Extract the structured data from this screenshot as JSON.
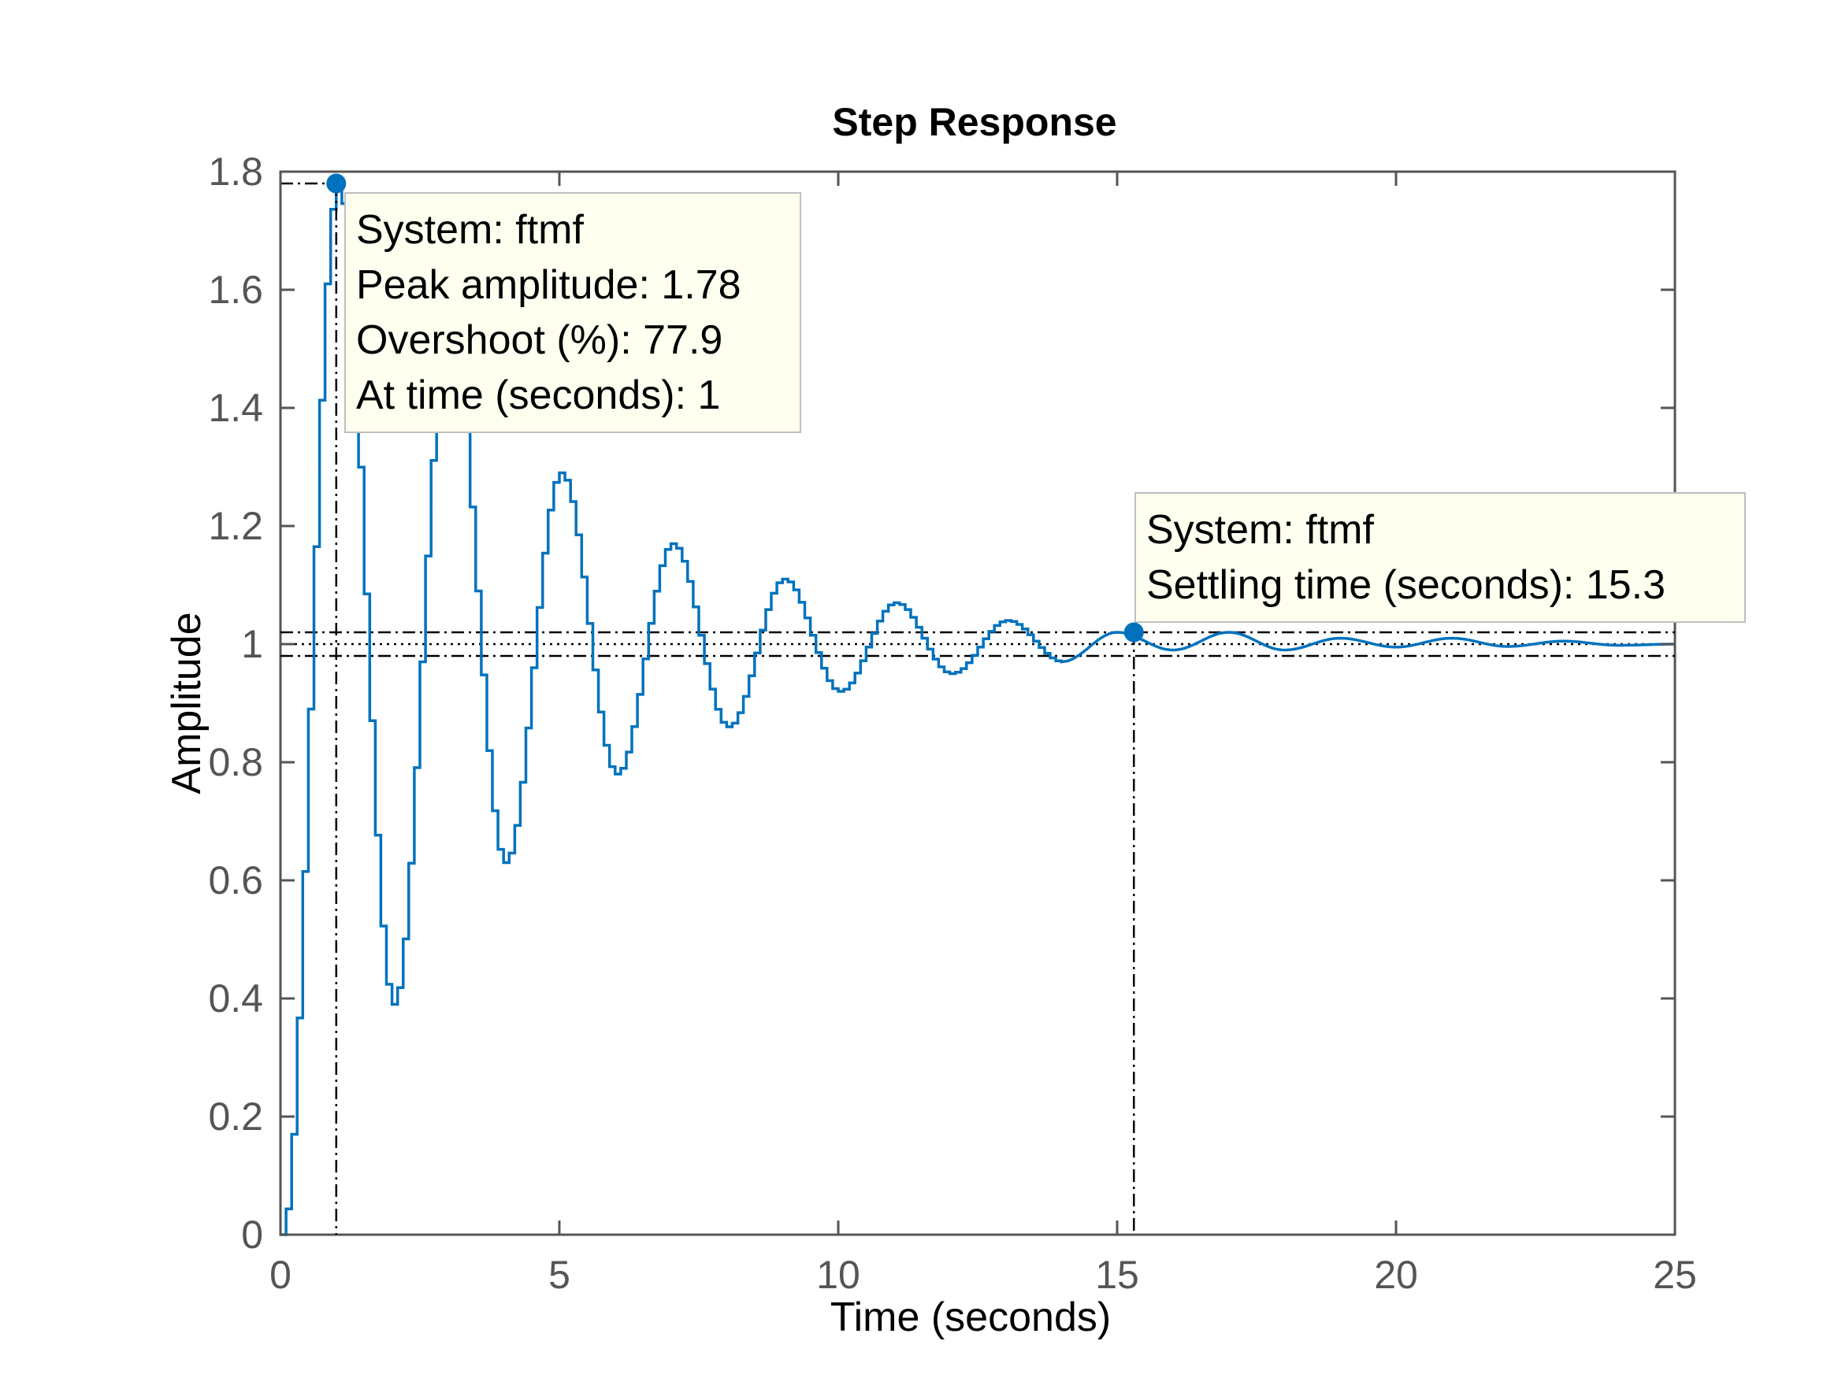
{
  "chart_data": {
    "type": "line",
    "title": "Step Response",
    "xlabel": "Time (seconds)",
    "ylabel": "Amplitude",
    "xlim": [
      0,
      25
    ],
    "ylim": [
      0,
      1.8
    ],
    "xticks": [
      0,
      5,
      10,
      15,
      20,
      25
    ],
    "xtick_labels": [
      "0",
      "5",
      "10",
      "15",
      "20",
      "25"
    ],
    "yticks": [
      0,
      0.2,
      0.4,
      0.6,
      0.8,
      1,
      1.2,
      1.4,
      1.6,
      1.8
    ],
    "ytick_labels": [
      "0",
      "0.2",
      "0.4",
      "0.6",
      "0.8",
      "1",
      "1.2",
      "1.4",
      "1.6",
      "1.8"
    ],
    "grid": false,
    "series": [
      {
        "name": "ftmf",
        "color": "#0072BD",
        "style": "stairs",
        "x": [
          0,
          1,
          2,
          3,
          4,
          5,
          6,
          7,
          8,
          9,
          10,
          11,
          12,
          13,
          14,
          15,
          16,
          17,
          18,
          19,
          20,
          21,
          22,
          23,
          24,
          25
        ],
        "y": [
          0,
          1.78,
          0.39,
          1.55,
          0.63,
          1.29,
          0.78,
          1.17,
          0.86,
          1.11,
          0.92,
          1.07,
          0.95,
          1.04,
          0.97,
          1.02,
          0.99,
          1.02,
          0.99,
          1.01,
          0.995,
          1.01,
          0.996,
          1.005,
          0.998,
          1.0
        ]
      }
    ],
    "reference_lines": {
      "final_value": 1.0,
      "settling_band": [
        0.98,
        1.02
      ]
    },
    "datatips": [
      {
        "x": 1.0,
        "y": 1.78,
        "lines": [
          "System: ftmf",
          "Peak amplitude: 1.78",
          "Overshoot (%): 77.9",
          "At time (seconds): 1"
        ]
      },
      {
        "x": 15.3,
        "y": 1.02,
        "lines": [
          "System: ftmf",
          "Settling time (seconds): 15.3"
        ]
      }
    ]
  }
}
